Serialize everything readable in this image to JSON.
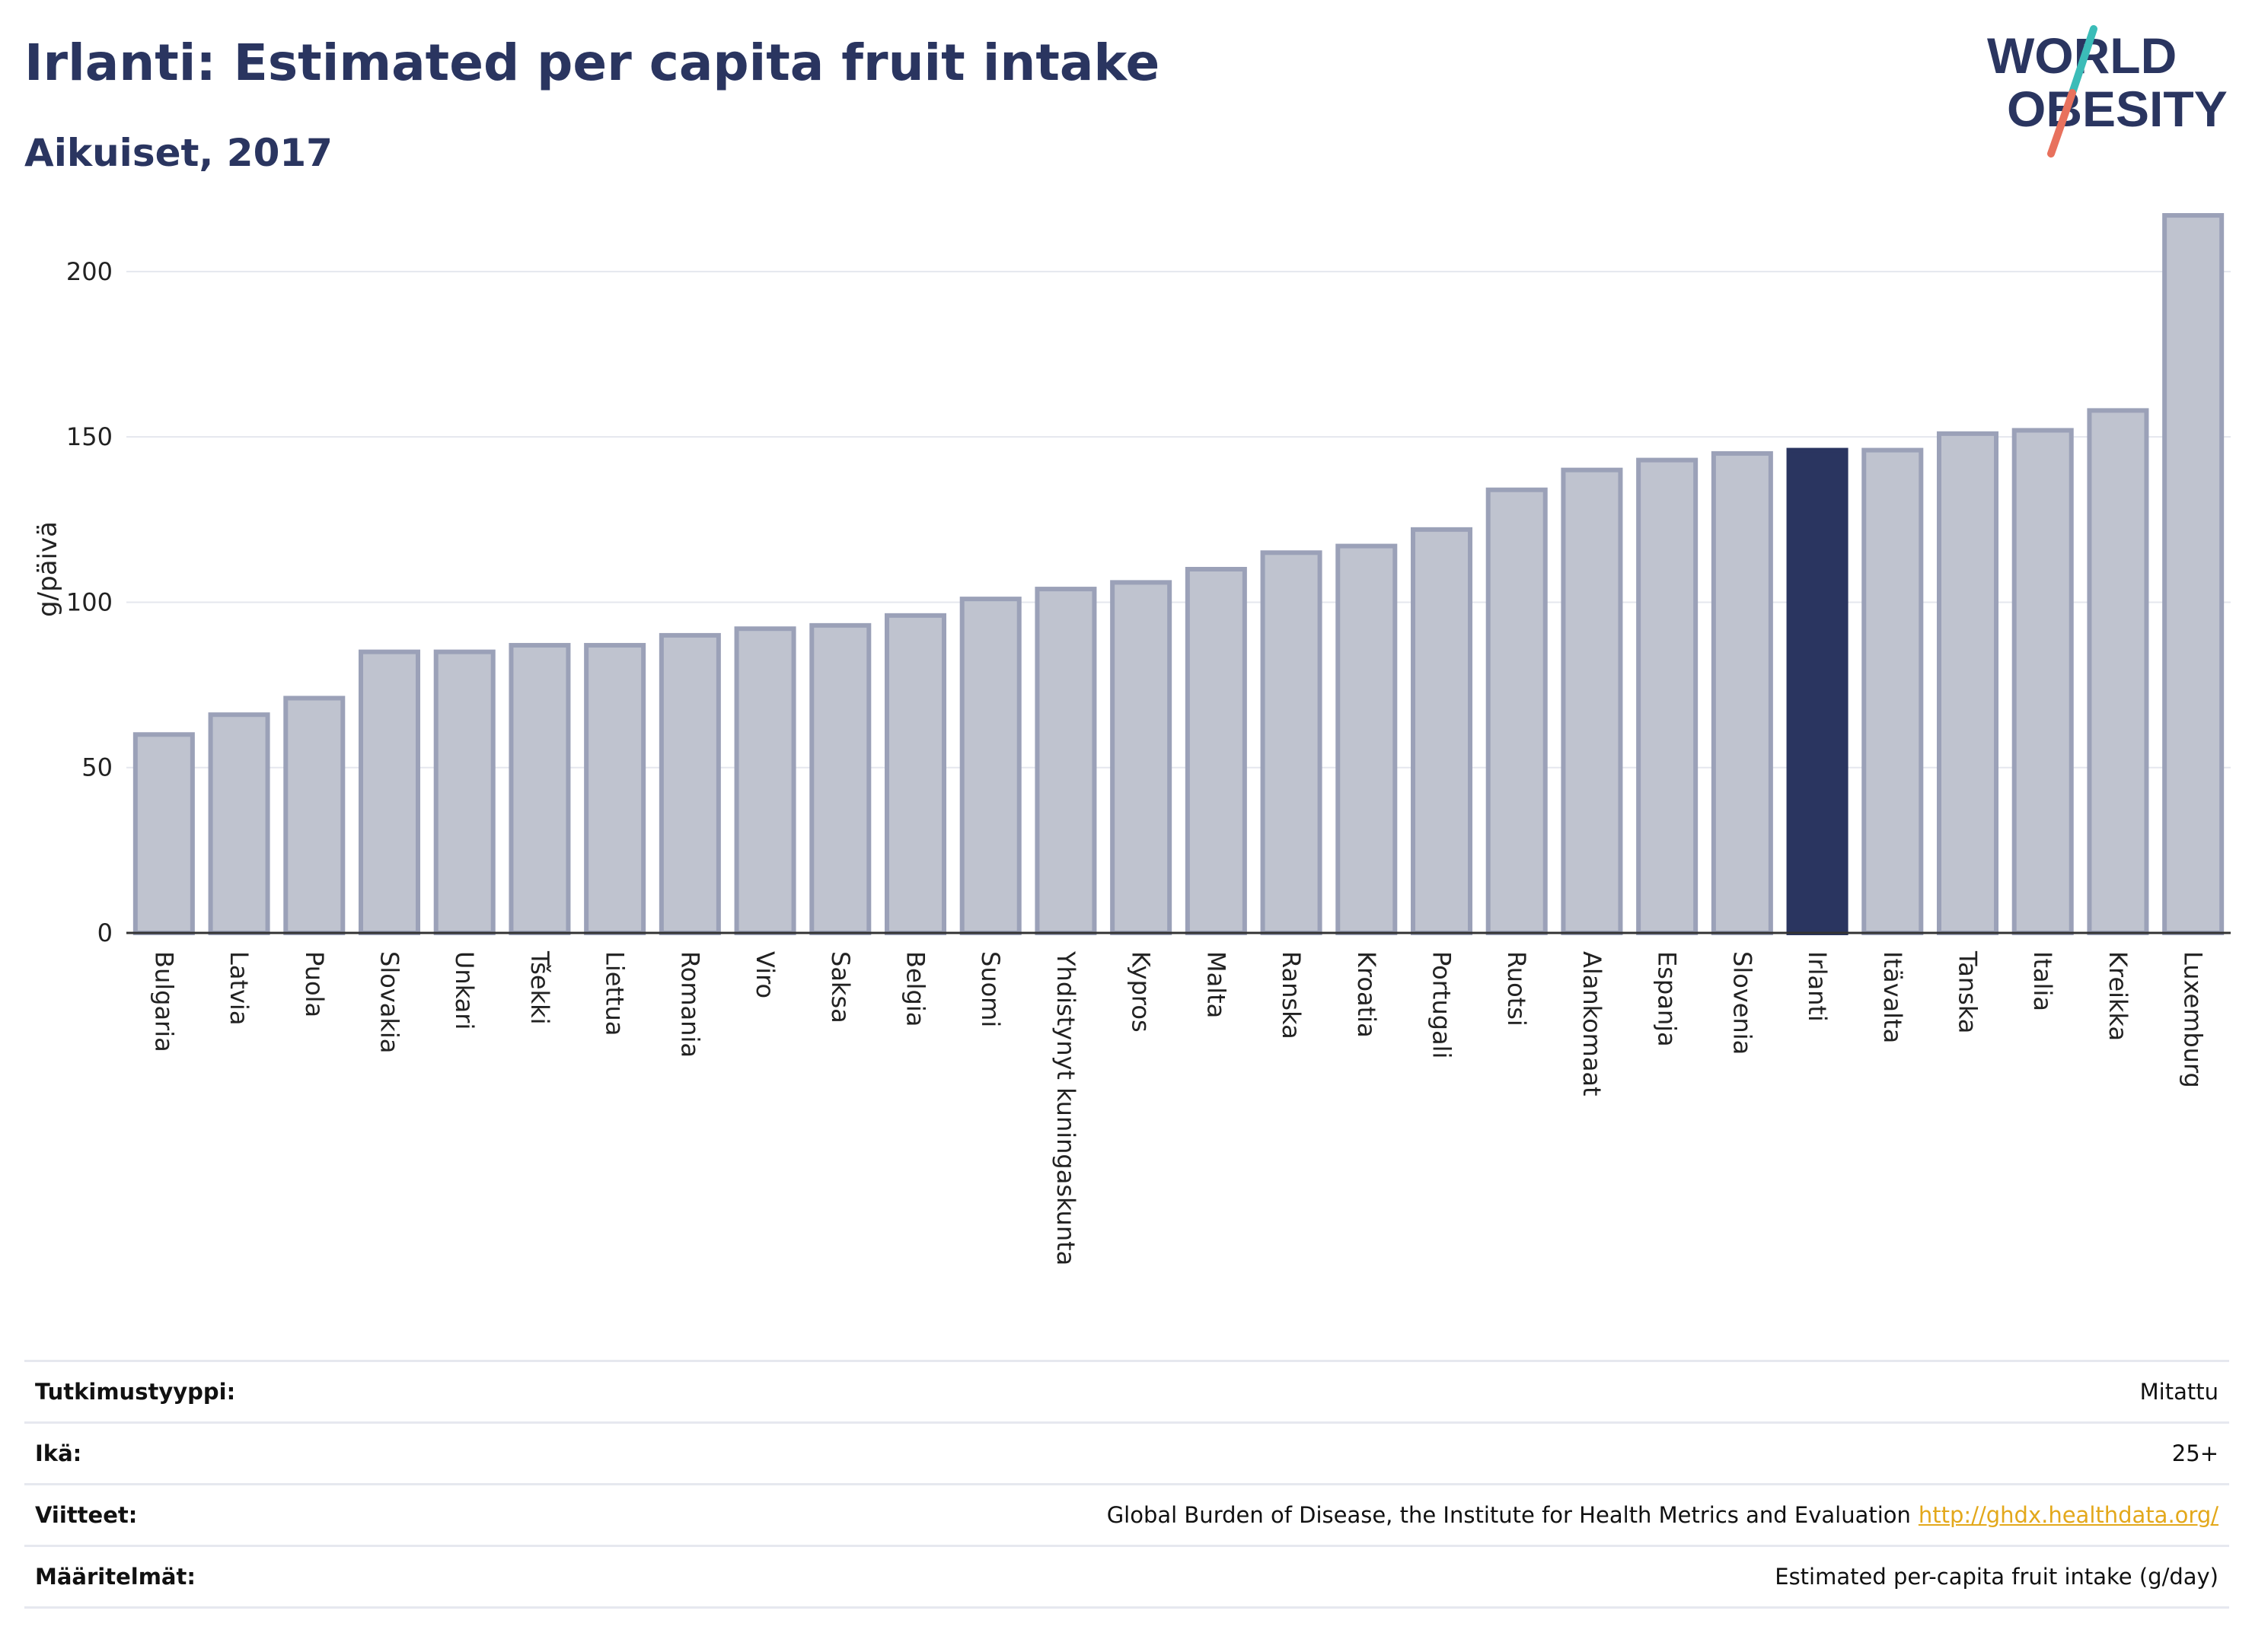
{
  "header": {
    "title": "Irlanti: Estimated per capita fruit intake",
    "subtitle": "Aikuiset, 2017"
  },
  "logo": {
    "line1": "WORLD",
    "line2": "OBESITY",
    "text_color": "#2a3560",
    "teal": "#3bbcb8",
    "coral": "#e8715d"
  },
  "chart_data": {
    "type": "bar",
    "title": "Irlanti: Estimated per capita fruit intake",
    "subtitle": "Aikuiset, 2017",
    "ylabel": "g/päivä",
    "xlabel": "",
    "ylim": [
      0,
      220
    ],
    "yticks": [
      0,
      50,
      100,
      150,
      200
    ],
    "grid": true,
    "highlight": "Irlanti",
    "colors": {
      "bar": "#bfc3cf",
      "bar_border": "#9ba1b8",
      "highlight": "#2a3560",
      "grid": "#e5e7ee",
      "axis": "#333333"
    },
    "categories": [
      "Bulgaria",
      "Latvia",
      "Puola",
      "Slovakia",
      "Unkari",
      "Tšekki",
      "Liettua",
      "Romania",
      "Viro",
      "Saksa",
      "Belgia",
      "Suomi",
      "Yhdistynyt kuningaskunta",
      "Kypros",
      "Malta",
      "Ranska",
      "Kroatia",
      "Portugali",
      "Ruotsi",
      "Alankomaat",
      "Espanja",
      "Slovenia",
      "Irlanti",
      "Itävalta",
      "Tanska",
      "Italia",
      "Kreikka",
      "Luxemburg"
    ],
    "values": [
      60,
      66,
      71,
      85,
      85,
      87,
      87,
      90,
      92,
      93,
      96,
      101,
      104,
      106,
      110,
      115,
      117,
      122,
      134,
      140,
      143,
      145,
      146,
      146,
      151,
      152,
      158,
      217
    ]
  },
  "meta": [
    {
      "key": "Tutkimustyyppi:",
      "value": "Mitattu",
      "link": ""
    },
    {
      "key": "Ikä:",
      "value": "25+",
      "link": ""
    },
    {
      "key": "Viitteet:",
      "value": "Global Burden of Disease, the Institute for Health Metrics and Evaluation",
      "link": "http://ghdx.healthdata.org/"
    },
    {
      "key": "Määritelmät:",
      "value": "Estimated per-capita fruit intake (g/day)",
      "link": ""
    }
  ]
}
